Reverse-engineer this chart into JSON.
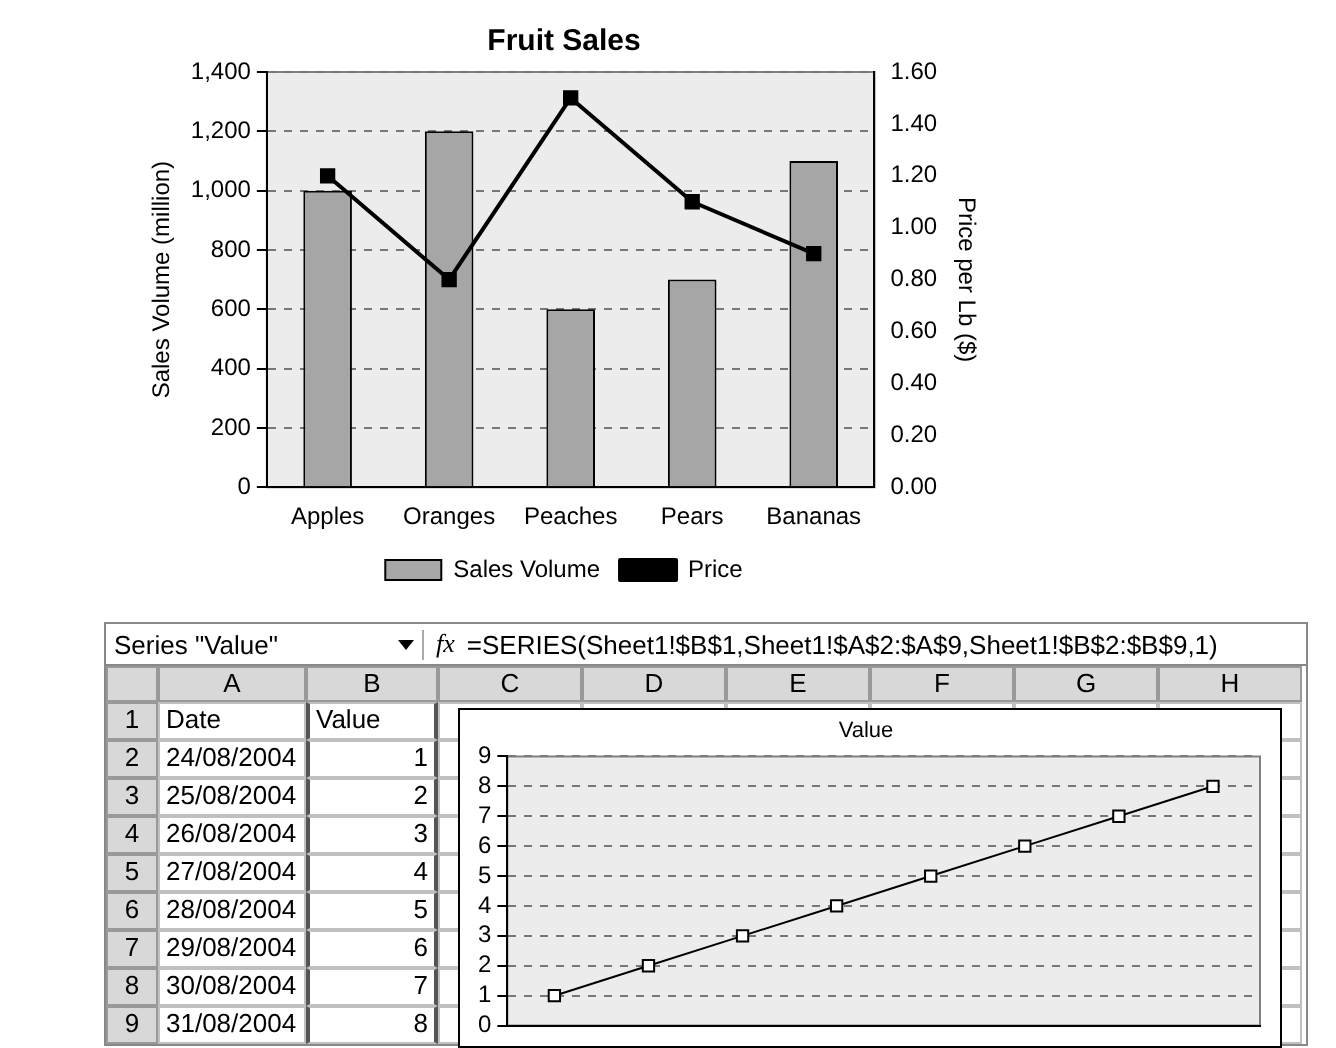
{
  "chart_data": [
    {
      "type": "bar",
      "title": "Fruit Sales",
      "ylabel": "Sales Volume (million)",
      "y2label": "Price per Lb ($)",
      "categories": [
        "Apples",
        "Oranges",
        "Peaches",
        "Pears",
        "Bananas"
      ],
      "series": [
        {
          "name": "Sales Volume",
          "color": "#a6a6a6",
          "values": [
            1000,
            1200,
            600,
            700,
            1100
          ]
        },
        {
          "name": "Price",
          "type": "line",
          "axis": "y2",
          "color": "#000000",
          "values": [
            1.2,
            0.8,
            1.5,
            1.1,
            0.9
          ]
        }
      ],
      "ylim": [
        0,
        1400
      ],
      "yticks": [
        0,
        200,
        400,
        600,
        800,
        {
          "value": 1000,
          "label": "1,000"
        },
        {
          "value": 1200,
          "label": "1,200"
        },
        {
          "value": 1400,
          "label": "1,400"
        }
      ],
      "y2lim": [
        0,
        1.6
      ],
      "y2ticks": [
        {
          "value": 0,
          "label": "0.00"
        },
        {
          "value": 0.2,
          "label": "0.20"
        },
        {
          "value": 0.4,
          "label": "0.40"
        },
        {
          "value": 0.6,
          "label": "0.60"
        },
        {
          "value": 0.8,
          "label": "0.80"
        },
        {
          "value": 1,
          "label": "1.00"
        },
        {
          "value": 1.2,
          "label": "1.20"
        },
        {
          "value": 1.4,
          "label": "1.40"
        },
        {
          "value": 1.6,
          "label": "1.60"
        }
      ],
      "grid": "y",
      "legend": "bottom",
      "marker": "square"
    },
    {
      "type": "line",
      "title": "Value",
      "categories": [
        null,
        null,
        null,
        null,
        null,
        null,
        null,
        null
      ],
      "values": [
        1,
        2,
        3,
        4,
        5,
        6,
        7,
        8
      ],
      "color": "#000000",
      "ylim": [
        0,
        9
      ],
      "yticks": [
        0,
        1,
        2,
        3,
        4,
        5,
        6,
        7,
        8,
        9
      ],
      "grid": "y",
      "marker": "square",
      "tick_labels": "y",
      "annotations": [
        "Series \"Value\"",
        "fx",
        "=SERIES(Sheet1!$B$1,Sheet1!$A$2:$A$9,Sheet1!$B$2:$B$9,1)",
        "A",
        "B",
        "C",
        "D",
        "E",
        "F",
        "G",
        "H",
        "1",
        "2",
        "3",
        "4",
        "5",
        "6",
        "7",
        "8",
        "9",
        "Date",
        "Value",
        "24/08/2004",
        "25/08/2004",
        "26/08/2004",
        "27/08/2004",
        "28/08/2004",
        "29/08/2004",
        "30/08/2004",
        "31/08/2004"
      ]
    }
  ]
}
